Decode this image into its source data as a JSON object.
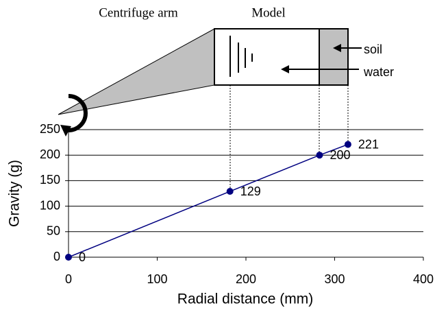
{
  "diagram": {
    "arm_label": "Centrifuge arm",
    "model_label": "Model",
    "soil_label": "soil",
    "water_label": "water"
  },
  "chart_data": {
    "type": "line",
    "x_label": "Radial distance (mm)",
    "y_label": "Gravity (g)",
    "x": [
      0,
      182,
      283,
      315
    ],
    "series": [
      {
        "color": "#000080",
        "values": [
          0,
          129,
          200,
          221
        ]
      }
    ],
    "xlim": [
      0,
      400
    ],
    "xticks": [
      0,
      100,
      200,
      300,
      400
    ],
    "ylim": [
      0,
      250
    ],
    "yticks": [
      0,
      50,
      100,
      150,
      200,
      250
    ],
    "grid": true
  }
}
